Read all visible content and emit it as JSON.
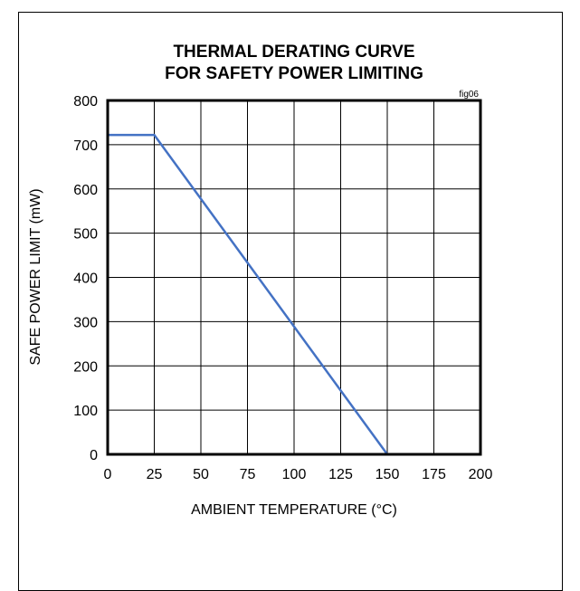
{
  "chart_data": {
    "type": "line",
    "title": "THERMAL DERATING CURVE",
    "subtitle": "FOR SAFETY POWER LIMITING",
    "fig_label": "fig06",
    "xlabel": "AMBIENT TEMPERATURE (°C)",
    "ylabel": "SAFE POWER LIMIT (mW)",
    "xlim": [
      0,
      200
    ],
    "ylim": [
      0,
      800
    ],
    "xticks": [
      0,
      25,
      50,
      75,
      100,
      125,
      150,
      175,
      200
    ],
    "yticks": [
      0,
      100,
      200,
      300,
      400,
      500,
      600,
      700,
      800
    ],
    "grid": true,
    "series": [
      {
        "color": "#4472c4",
        "x": [
          0,
          25,
          150
        ],
        "y": [
          722,
          722,
          0
        ]
      }
    ]
  }
}
